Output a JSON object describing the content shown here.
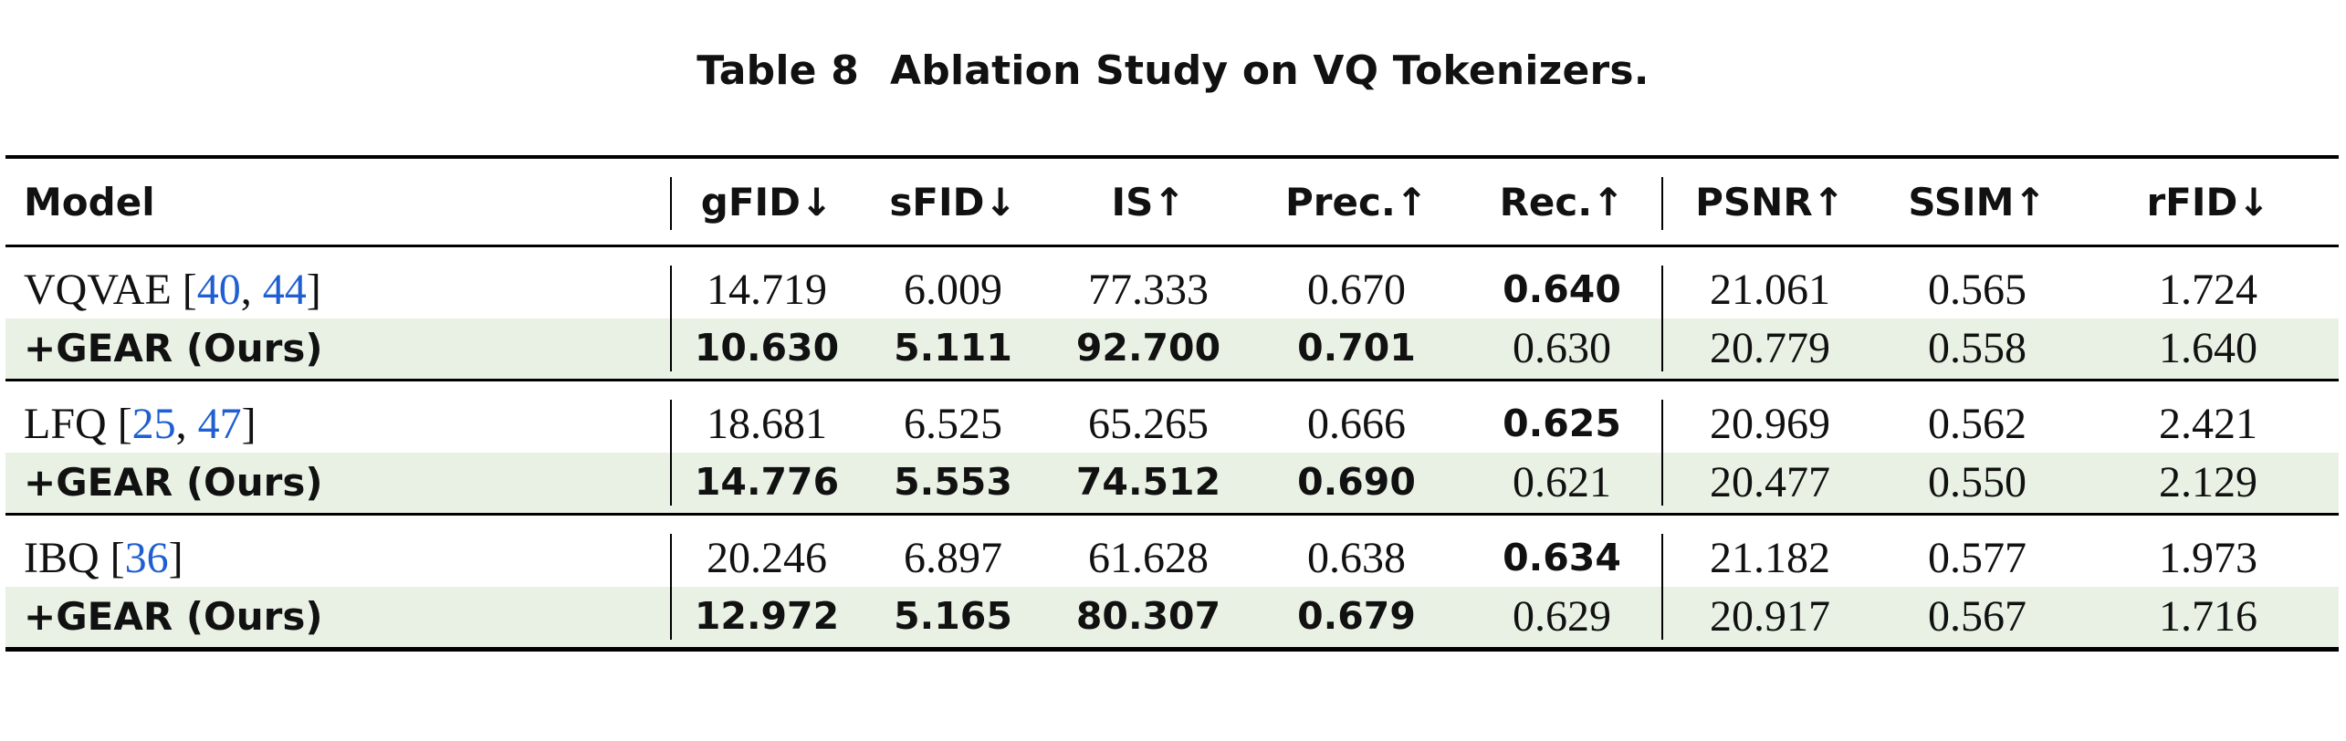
{
  "caption": {
    "label": "Table 8",
    "title": "Ablation Study on VQ Tokenizers."
  },
  "table": {
    "headers": {
      "model": "Model",
      "gfid": "gFID↓",
      "sfid": "sFID↓",
      "is": "IS↑",
      "prec": "Prec.↑",
      "rec": "Rec.↑",
      "psnr": "PSNR↑",
      "ssim": "SSIM↑",
      "rfid": "rFID↓"
    },
    "groups": [
      {
        "base": {
          "name": "VQVAE",
          "cite_open": "[",
          "cite1": "40",
          "cite_sep": ", ",
          "cite2": "44",
          "cite_close": "]",
          "gfid": "14.719",
          "sfid": "6.009",
          "is": "77.333",
          "prec": "0.670",
          "rec": "0.640",
          "psnr": "21.061",
          "ssim": "0.565",
          "rfid": "1.724"
        },
        "ours": {
          "name": "+GEAR (Ours)",
          "gfid": "10.630",
          "sfid": "5.111",
          "is": "92.700",
          "prec": "0.701",
          "rec": "0.630",
          "psnr": "20.779",
          "ssim": "0.558",
          "rfid": "1.640"
        }
      },
      {
        "base": {
          "name": "LFQ",
          "cite_open": "[",
          "cite1": "25",
          "cite_sep": ", ",
          "cite2": "47",
          "cite_close": "]",
          "gfid": "18.681",
          "sfid": "6.525",
          "is": "65.265",
          "prec": "0.666",
          "rec": "0.625",
          "psnr": "20.969",
          "ssim": "0.562",
          "rfid": "2.421"
        },
        "ours": {
          "name": "+GEAR (Ours)",
          "gfid": "14.776",
          "sfid": "5.553",
          "is": "74.512",
          "prec": "0.690",
          "rec": "0.621",
          "psnr": "20.477",
          "ssim": "0.550",
          "rfid": "2.129"
        }
      },
      {
        "base": {
          "name": "IBQ",
          "cite_open": "[",
          "cite1": "36",
          "cite_close": "]",
          "gfid": "20.246",
          "sfid": "6.897",
          "is": "61.628",
          "prec": "0.638",
          "rec": "0.634",
          "psnr": "21.182",
          "ssim": "0.577",
          "rfid": "1.973"
        },
        "ours": {
          "name": "+GEAR (Ours)",
          "gfid": "12.972",
          "sfid": "5.165",
          "is": "80.307",
          "prec": "0.679",
          "rec": "0.629",
          "psnr": "20.917",
          "ssim": "0.567",
          "rfid": "1.716"
        }
      }
    ],
    "colors": {
      "citation": "#1f5fd1",
      "ours_row_background": "#e9f1e4"
    }
  }
}
